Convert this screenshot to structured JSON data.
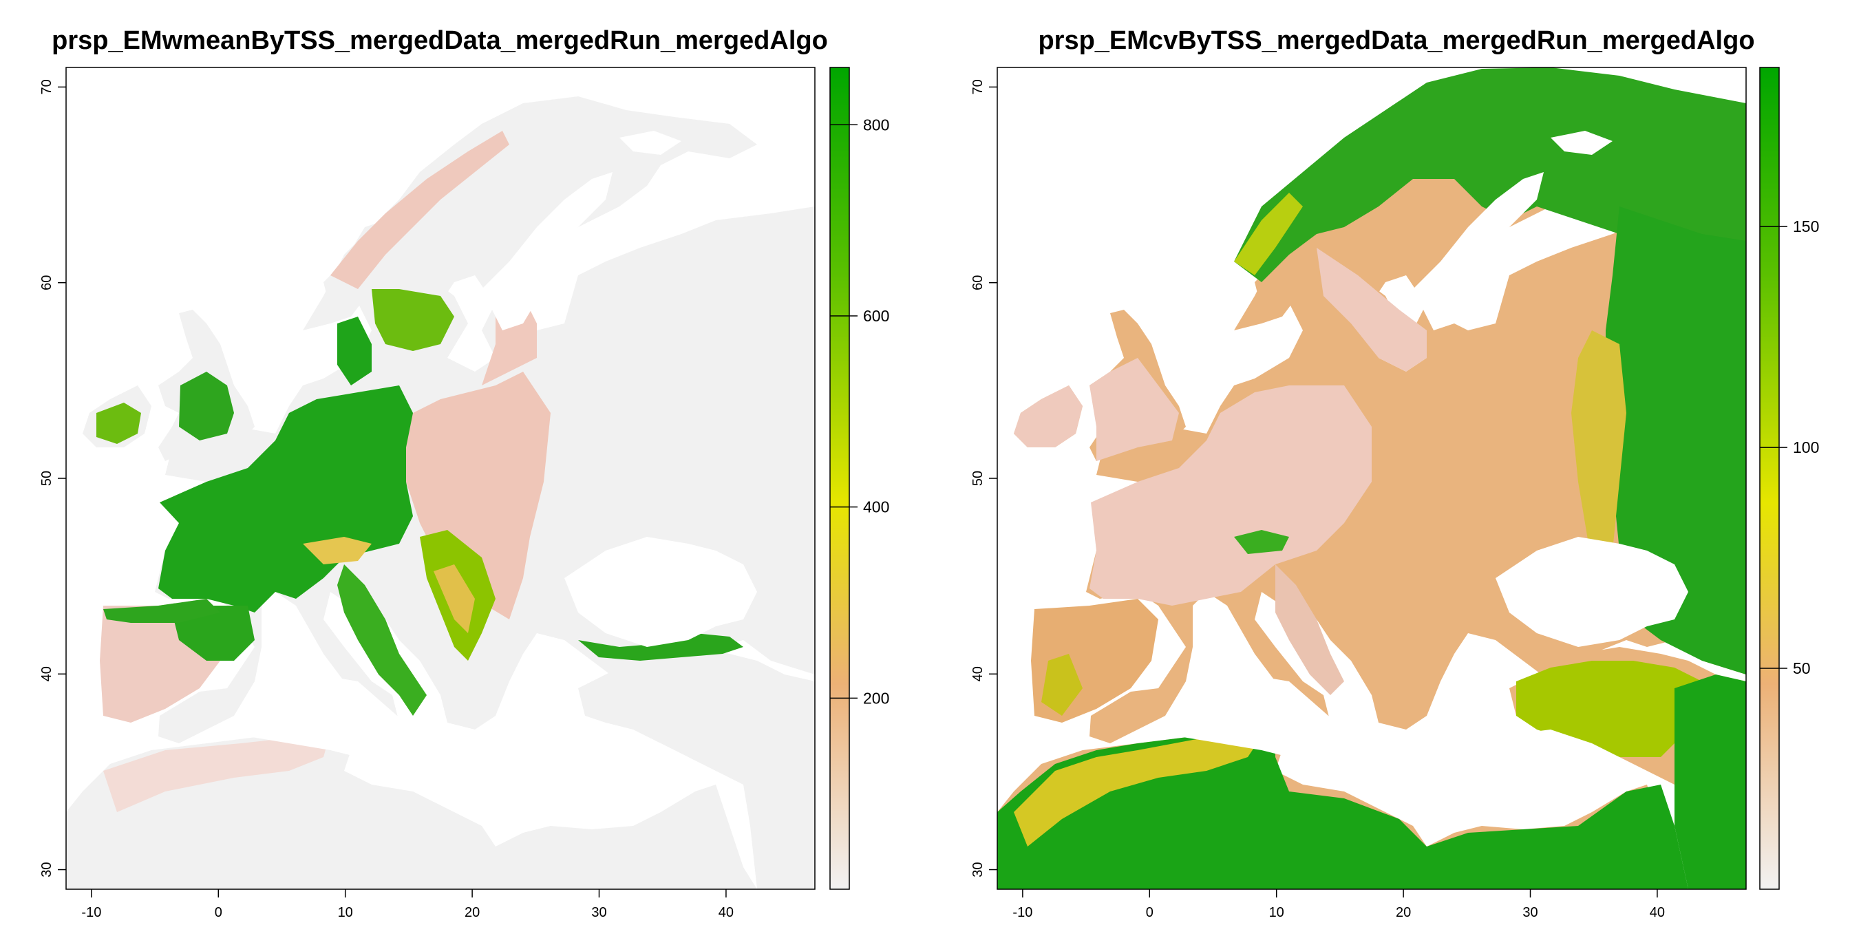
{
  "maps": [
    {
      "title": "prsp_EMwmeanByTSS_mergedData_mergedRun_mergedAlgo",
      "x_ticks": [
        "-10",
        "0",
        "10",
        "20",
        "30",
        "40"
      ],
      "y_ticks": [
        "30",
        "40",
        "50",
        "60",
        "70"
      ],
      "legend_ticks": [
        "200",
        "400",
        "600",
        "800"
      ],
      "legend_tick_values": [
        200,
        400,
        600,
        800
      ],
      "legend_range": [
        0,
        860
      ],
      "colors": {
        "low": "#f2f2f2",
        "mid_low": "#ecb176",
        "mid": "#e6e600",
        "high": "#00a600"
      }
    },
    {
      "title": "prsp_EMcvByTSS_mergedData_mergedRun_mergedAlgo",
      "x_ticks": [
        "-10",
        "0",
        "10",
        "20",
        "30",
        "40"
      ],
      "y_ticks": [
        "30",
        "40",
        "50",
        "60",
        "70"
      ],
      "legend_ticks": [
        "50",
        "100",
        "150"
      ],
      "legend_tick_values": [
        50,
        100,
        150
      ],
      "legend_range": [
        0,
        186
      ],
      "colors": {
        "low": "#f2f2f2",
        "mid_low": "#ecb176",
        "mid": "#e6e600",
        "high": "#00a600"
      }
    }
  ],
  "axes": {
    "x_range": [
      -12,
      47
    ],
    "y_range": [
      29,
      71
    ]
  }
}
